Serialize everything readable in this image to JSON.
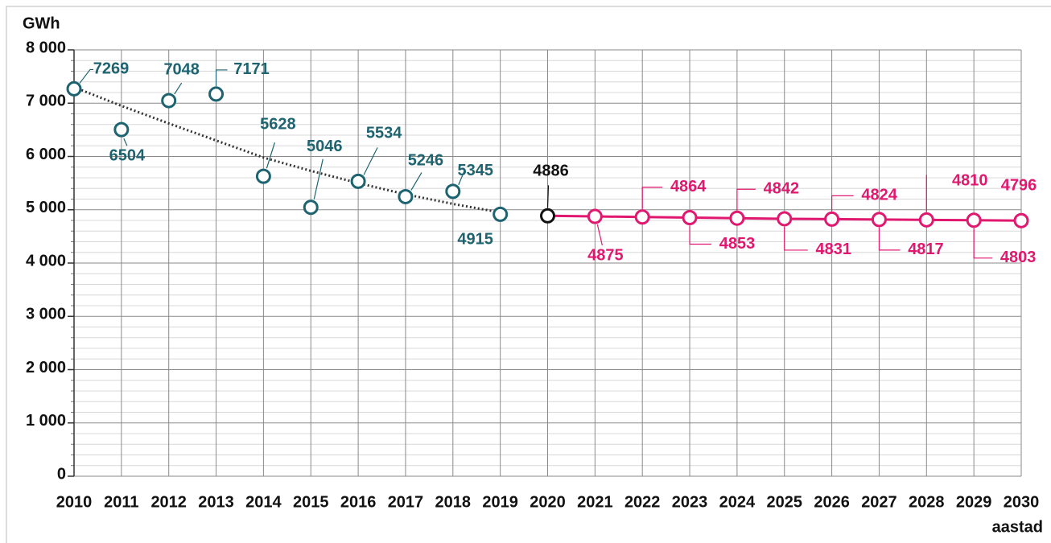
{
  "chart_data": {
    "type": "line",
    "y_label": "GWh",
    "x_label": "aastad",
    "categories": [
      "2010",
      "2011",
      "2012",
      "2013",
      "2014",
      "2015",
      "2016",
      "2017",
      "2018",
      "2019",
      "2020",
      "2021",
      "2022",
      "2023",
      "2024",
      "2025",
      "2026",
      "2027",
      "2028",
      "2029",
      "2030"
    ],
    "series": [
      {
        "color": "#1e6470",
        "values": [
          7269,
          6504,
          7048,
          7171,
          5628,
          5046,
          5534,
          5246,
          5345,
          4915,
          null,
          null,
          null,
          null,
          null,
          null,
          null,
          null,
          null,
          null,
          null
        ]
      },
      {
        "color": "#111111",
        "values": [
          null,
          null,
          null,
          null,
          null,
          null,
          null,
          null,
          null,
          null,
          4886,
          null,
          null,
          null,
          null,
          null,
          null,
          null,
          null,
          null,
          null
        ]
      },
      {
        "color": "#e0186f",
        "values": [
          null,
          null,
          null,
          null,
          null,
          null,
          null,
          null,
          null,
          null,
          null,
          4875,
          4864,
          4853,
          4842,
          4831,
          4824,
          4817,
          4810,
          4803,
          4796
        ]
      }
    ],
    "trendline": {
      "color": "#333333",
      "values": [
        7300,
        6950,
        6620,
        6300,
        5980,
        5730,
        5500,
        5290,
        5110,
        4950,
        null,
        null,
        null,
        null,
        null,
        null,
        null,
        null,
        null,
        null,
        null
      ]
    },
    "ylim": [
      0,
      8000
    ],
    "yticks": [
      0,
      {
        "value": 1000,
        "label": "1 000"
      },
      {
        "value": 2000,
        "label": "2 000"
      },
      {
        "value": 3000,
        "label": "3 000"
      },
      {
        "value": 4000,
        "label": "4 000"
      },
      {
        "value": 5000,
        "label": "5 000"
      },
      {
        "value": 6000,
        "label": "6 000"
      },
      {
        "value": 7000,
        "label": "7 000"
      },
      {
        "value": 8000,
        "label": "8 000"
      }
    ],
    "yminorticks": [
      200,
      400,
      600,
      800,
      1200,
      1400,
      1600,
      1800,
      2200,
      2400,
      2600,
      2800,
      3200,
      3400,
      3600,
      3800,
      4200,
      4400,
      4600,
      4800,
      5200,
      5400,
      5600,
      5800,
      6200,
      6400,
      6600,
      6800,
      7200,
      7400,
      7600,
      7800
    ],
    "grid": true
  }
}
